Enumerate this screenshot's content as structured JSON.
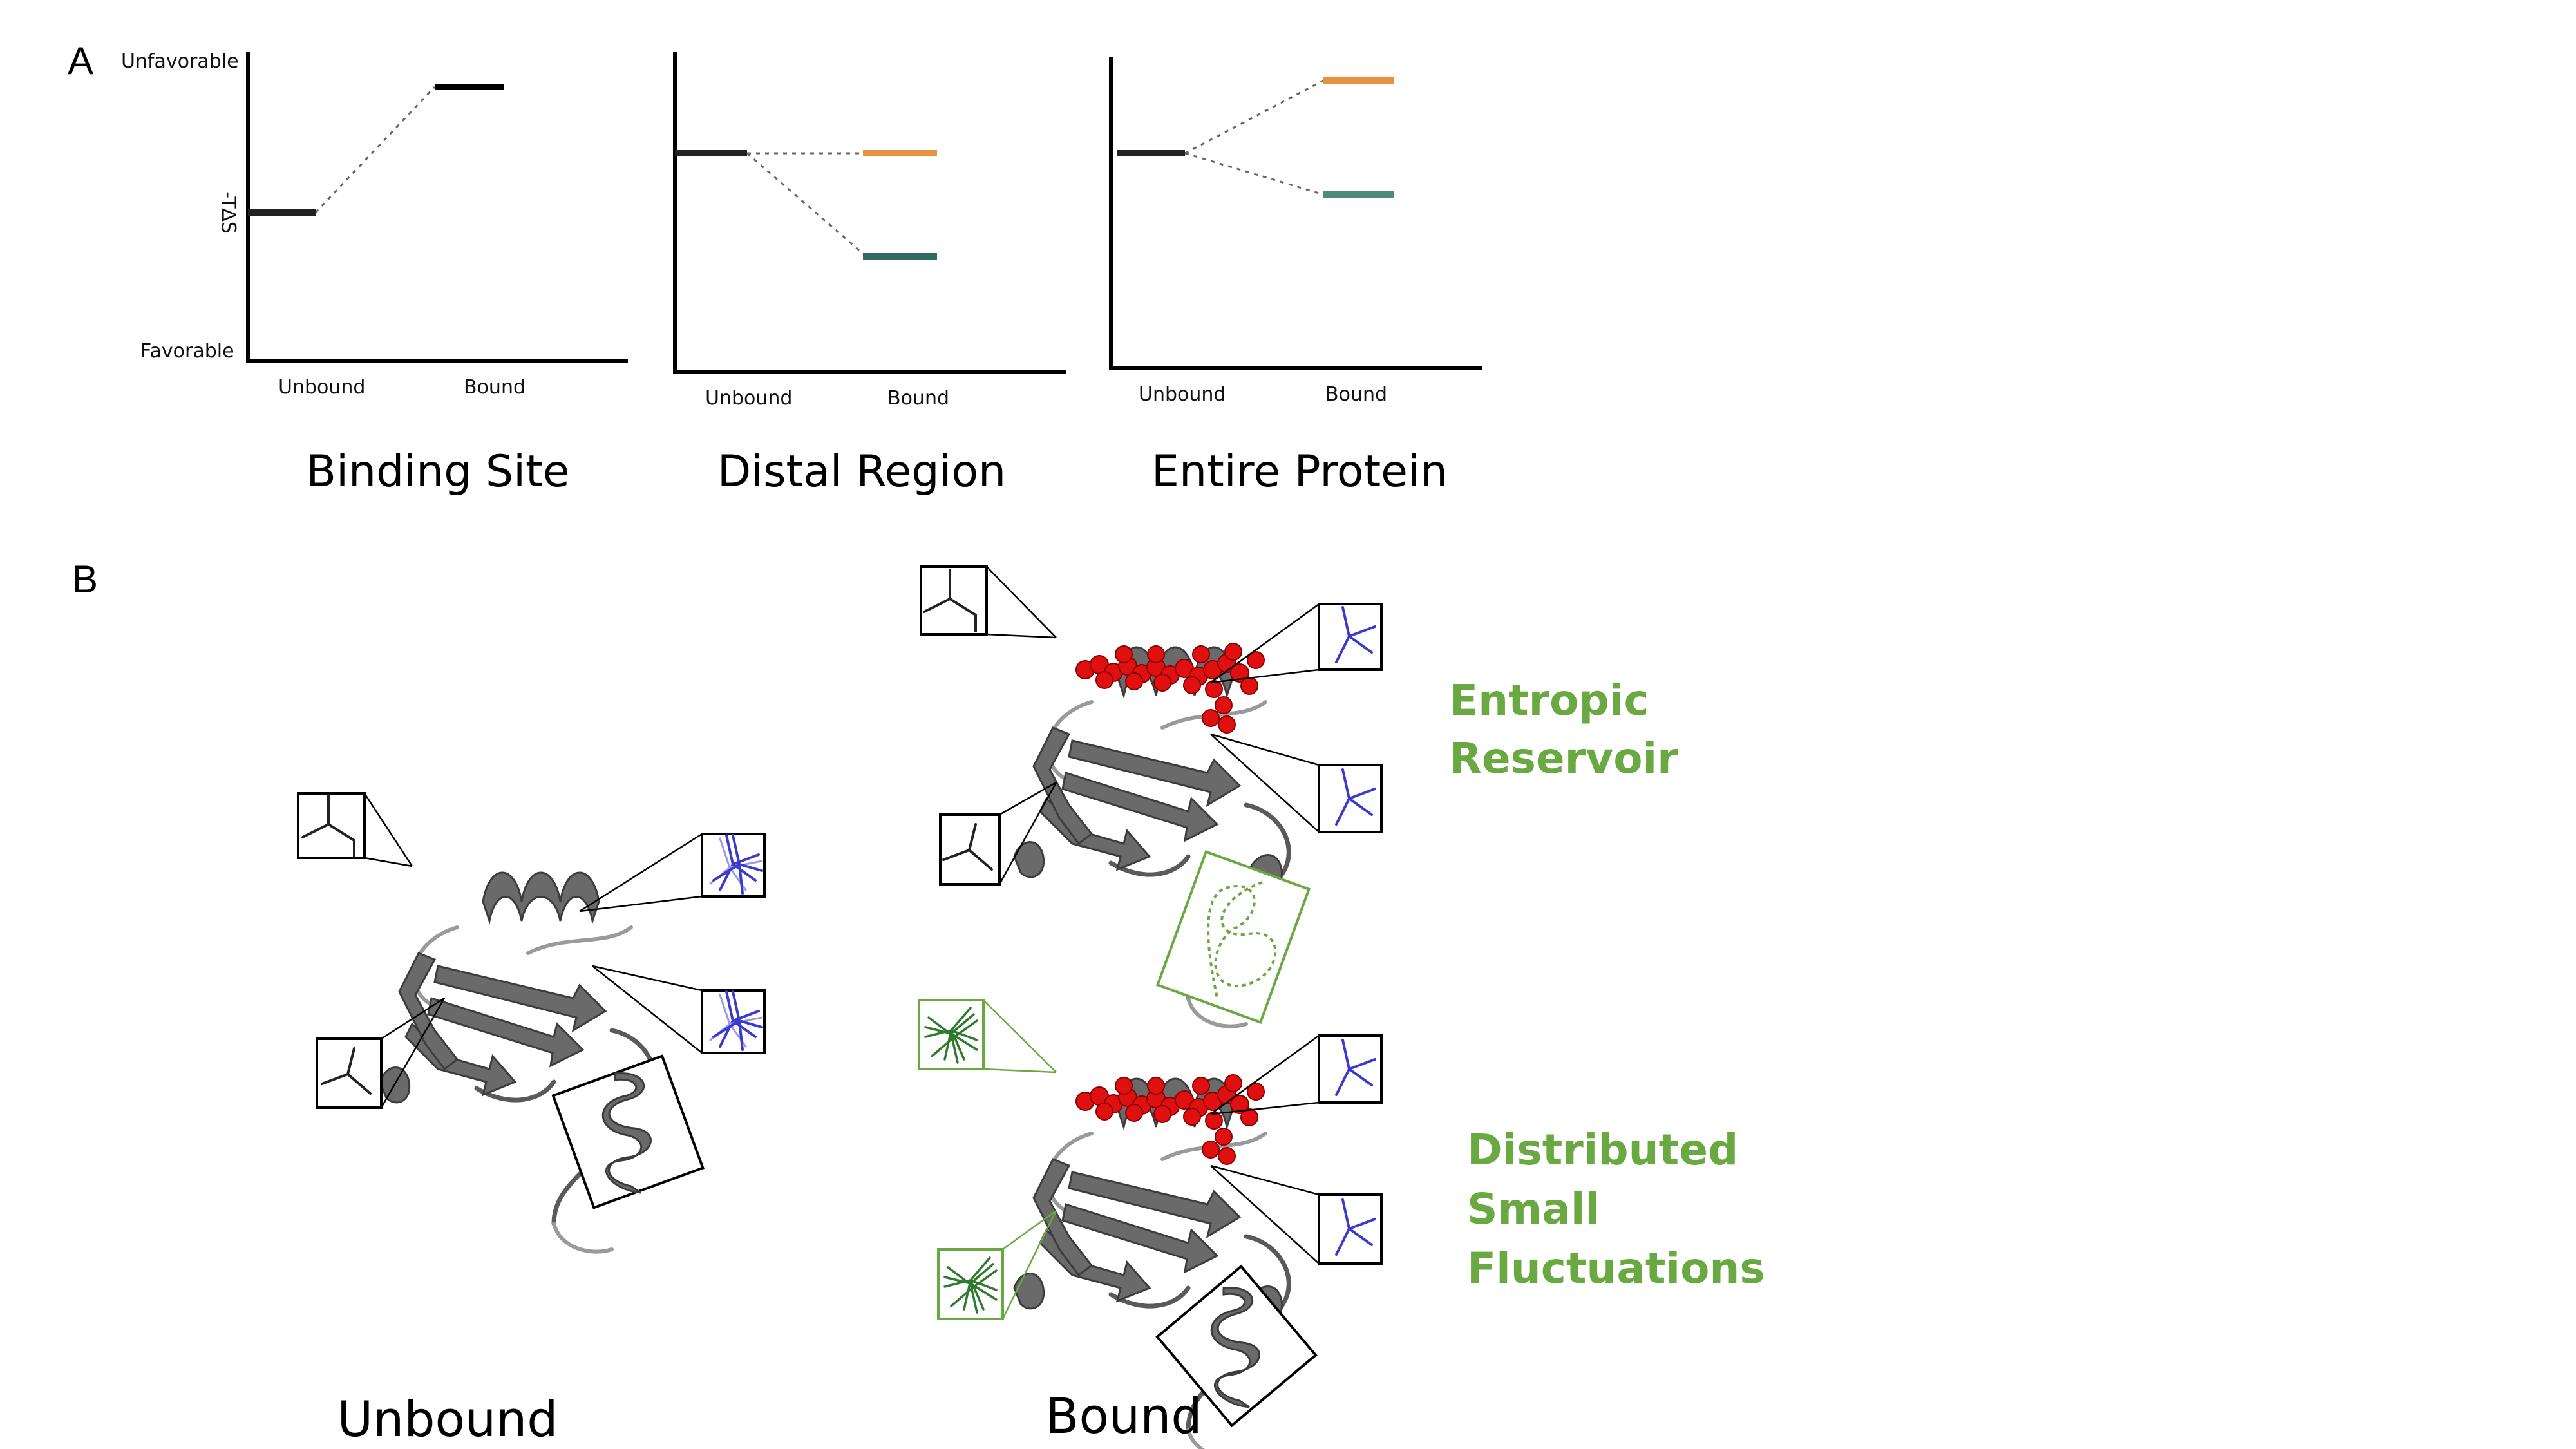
{
  "panel_a": {
    "letter": "A",
    "y_axis_label": "-T∆S",
    "y_top_label": "Unfavorable",
    "y_bottom_label": "Favorable",
    "colors": {
      "unbound": "#222222",
      "bound": "#000000",
      "orange": "#e69242",
      "teal": "#2f6b5f",
      "teal2": "#4f8a7b"
    },
    "charts": [
      {
        "title": "Binding Site",
        "x_labels": [
          "Unbound",
          "Bound"
        ]
      },
      {
        "title": "Distal Region",
        "x_labels": [
          "Unbound",
          "Bound"
        ]
      },
      {
        "title": "Entire Protein",
        "x_labels": [
          "Unbound",
          "Bound"
        ]
      }
    ]
  },
  "chart_data": [
    {
      "type": "line",
      "title": "Binding Site",
      "categories": [
        "Unbound",
        "Bound"
      ],
      "ylabel": "-T∆S",
      "series": [
        {
          "values": [
            0.48,
            0.92
          ]
        }
      ]
    },
    {
      "type": "line",
      "title": "Distal Region",
      "categories": [
        "Unbound",
        "Bound"
      ],
      "ylabel": "",
      "series": [
        {
          "values": [
            0.69,
            0.69
          ]
        },
        {
          "values": [
            0.69,
            0.37
          ]
        }
      ]
    },
    {
      "type": "line",
      "title": "Entire Protein",
      "categories": [
        "Unbound",
        "Bound"
      ],
      "ylabel": "",
      "series": [
        {
          "values": [
            0.68,
            0.91
          ]
        },
        {
          "values": [
            0.68,
            0.55
          ]
        }
      ]
    }
  ],
  "panel_b": {
    "letter": "B",
    "unbound_label": "Unbound",
    "bound_label": "Bound",
    "entropic_reservoir": [
      "Entropic",
      "Reservoir"
    ],
    "distributed_small_fluctuations": [
      "Distributed",
      "Small",
      "Fluctuations"
    ],
    "label_color": "#6aa842"
  }
}
